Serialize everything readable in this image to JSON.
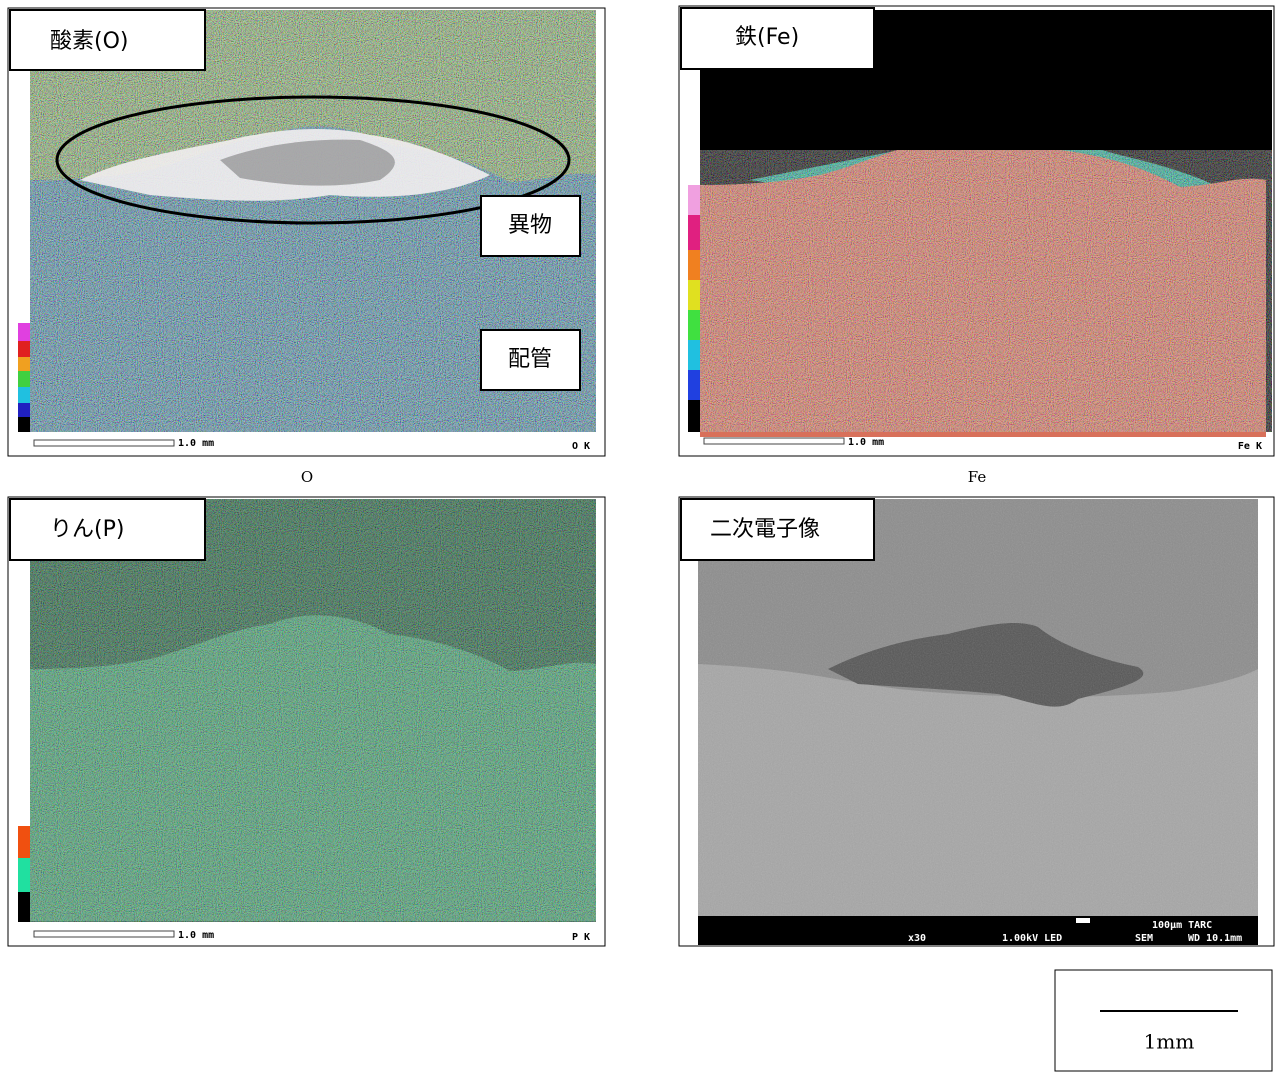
{
  "panels": [
    {
      "label": "酸素(O)",
      "annotations": [
        "異物",
        "配管"
      ],
      "scale": "1.0 mm",
      "element_code": "O K",
      "caption": "O"
    },
    {
      "label": "鉄(Fe)",
      "scale": "1.0 mm",
      "element_code": "Fe K",
      "caption": "Fe"
    },
    {
      "label": "りん(P)",
      "scale": "1.0 mm",
      "element_code": "P K"
    },
    {
      "label": "二次電子像",
      "sem_info": [
        "x30",
        "1.00kV LED",
        "SEM",
        "100μm TARC",
        "WD 10.1mm"
      ]
    }
  ],
  "scale_box": {
    "label": "1mm"
  }
}
